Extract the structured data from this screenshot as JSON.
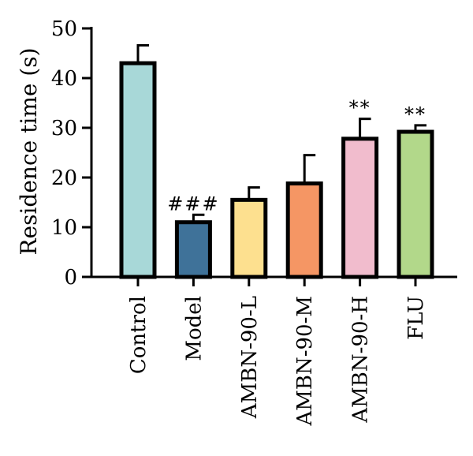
{
  "chart_data": {
    "type": "bar",
    "ylabel": "Residence time (s)",
    "xlabel": "",
    "title": "",
    "ylim": [
      0,
      50
    ],
    "yticks": [
      0,
      10,
      20,
      30,
      40,
      50
    ],
    "categories": [
      "Control",
      "Model",
      "AMBN-90-L",
      "AMBN-90-M",
      "AMBN-90-H",
      "FLU"
    ],
    "values": [
      43,
      11,
      15.5,
      18.8,
      27.8,
      29.2
    ],
    "errors": [
      3.6,
      1.5,
      2.5,
      5.7,
      4.0,
      1.3
    ],
    "annotations": [
      "",
      "###",
      "",
      "",
      "**",
      "**"
    ],
    "colors": [
      "#a8d8d8",
      "#3f7299",
      "#fde08f",
      "#f59664",
      "#f1bccd",
      "#b2d88a"
    ],
    "grid": false,
    "legend": "none"
  }
}
